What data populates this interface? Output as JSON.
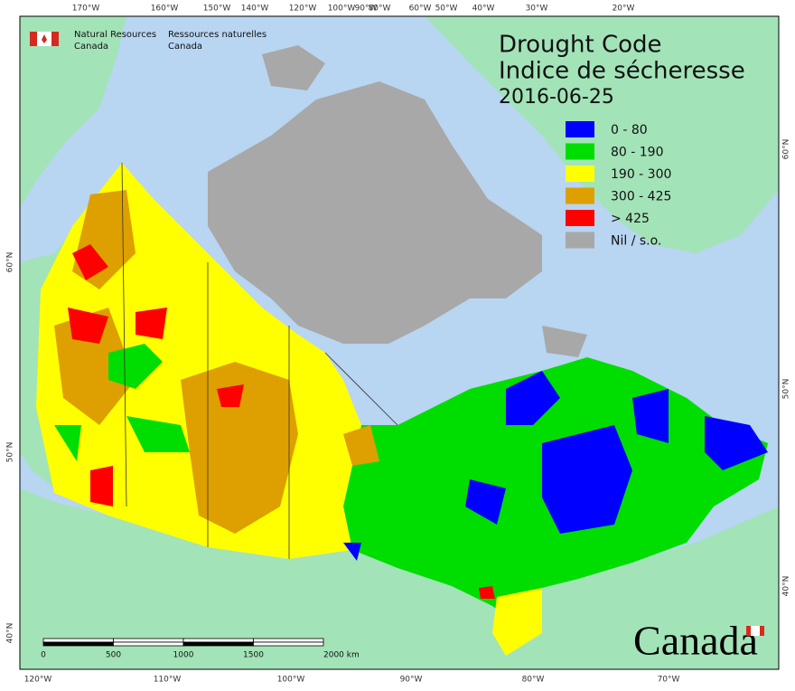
{
  "logo": {
    "en_line1": "Natural Resources",
    "en_line2": "Canada",
    "fr_line1": "Ressources naturelles",
    "fr_line2": "Canada"
  },
  "title": {
    "line1": "Drought Code",
    "line2": "Indice de sécheresse",
    "date": "2016-06-25"
  },
  "legend": [
    {
      "label": "0 - 80",
      "color": "#0000ff"
    },
    {
      "label": "80 - 190",
      "color": "#00dd00"
    },
    {
      "label": "190 - 300",
      "color": "#ffff00"
    },
    {
      "label": "300 - 425",
      "color": "#dda000"
    },
    {
      "label": "> 425",
      "color": "#ff0000"
    },
    {
      "label": "Nil / s.o.",
      "color": "#a8a8a8"
    }
  ],
  "graticule": {
    "top": [
      "170°W",
      "160°W",
      "150°W",
      "140°W",
      "120°W",
      "100°W",
      "90°W",
      "80°W",
      "60°W",
      "50°W",
      "40°W",
      "30°W",
      "20°W"
    ],
    "bottom": [
      "120°W",
      "110°W",
      "100°W",
      "90°W",
      "80°W",
      "70°W"
    ],
    "left": [
      "60°N",
      "50°N",
      "40°N"
    ],
    "right": [
      "60°N",
      "50°N",
      "40°N"
    ]
  },
  "scale_bar": {
    "labels": [
      "0",
      "500",
      "1000",
      "1500",
      "2000 km"
    ]
  },
  "wordmark": "Canada"
}
